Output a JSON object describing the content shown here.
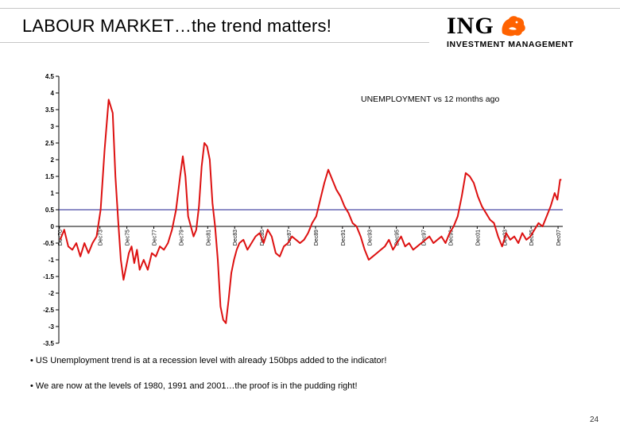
{
  "header": {
    "title": "LABOUR MARKET…the trend matters!",
    "logo_word": "ING",
    "logo_subtitle": "INVESTMENT MANAGEMENT",
    "logo_icon": "lion-icon",
    "brand_color": "#1a2a6c",
    "accent_color": "#ff6200"
  },
  "chart_data": {
    "type": "line",
    "title": "UNEMPLOYMENT vs 12 months ago",
    "xlabel": "",
    "ylabel": "",
    "ylim": [
      -3.5,
      4.5
    ],
    "yticks": [
      4.5,
      4,
      3.5,
      3,
      2.5,
      2,
      1.5,
      1,
      0.5,
      0,
      -0.5,
      -1,
      -1.5,
      -2,
      -2.5,
      -3,
      -3.5
    ],
    "ytick_labels": [
      "4.5",
      "4",
      "3.5",
      "3",
      "2.5",
      "2",
      "1.5",
      "1",
      "0.5",
      "0",
      "-0.5",
      "-1",
      "-1.5",
      "-2",
      "-2.5",
      "-3",
      "-3.5"
    ],
    "xlim": [
      1970.9,
      2008.3
    ],
    "xticks": [
      "Dec70",
      "Dec73",
      "Dec75",
      "Dec77",
      "Dec79",
      "Dec81",
      "Dec83",
      "Dec85",
      "Dec87",
      "Dec89",
      "Dec91",
      "Dec93",
      "Dec95",
      "Dec97",
      "Dec99",
      "Dec01",
      "Dec03",
      "Dec05",
      "Dec07"
    ],
    "xtick_years": [
      1970.95,
      1973.95,
      1975.95,
      1977.95,
      1979.95,
      1981.95,
      1983.95,
      1985.95,
      1987.95,
      1989.95,
      1991.95,
      1993.95,
      1995.95,
      1997.95,
      1999.95,
      2001.95,
      2003.95,
      2005.95,
      2007.95
    ],
    "reference_line": 0.5,
    "grid": false,
    "legend": "none",
    "series": [
      {
        "color": "#dd1111",
        "x": [
          1971.0,
          1971.3,
          1971.6,
          1971.9,
          1972.2,
          1972.5,
          1972.8,
          1973.1,
          1973.4,
          1973.7,
          1974.0,
          1974.3,
          1974.6,
          1974.9,
          1975.1,
          1975.3,
          1975.5,
          1975.7,
          1975.9,
          1976.1,
          1976.3,
          1976.5,
          1976.7,
          1976.9,
          1977.2,
          1977.5,
          1977.8,
          1978.1,
          1978.4,
          1978.7,
          1979.0,
          1979.3,
          1979.6,
          1979.9,
          1980.1,
          1980.3,
          1980.5,
          1980.7,
          1980.9,
          1981.1,
          1981.3,
          1981.5,
          1981.7,
          1981.9,
          1982.1,
          1982.3,
          1982.5,
          1982.7,
          1982.9,
          1983.1,
          1983.3,
          1983.5,
          1983.7,
          1983.9,
          1984.1,
          1984.3,
          1984.6,
          1984.9,
          1985.2,
          1985.5,
          1985.8,
          1986.1,
          1986.4,
          1986.7,
          1987.0,
          1987.3,
          1987.6,
          1987.9,
          1988.2,
          1988.5,
          1988.8,
          1989.1,
          1989.4,
          1989.7,
          1990.0,
          1990.3,
          1990.6,
          1990.9,
          1991.2,
          1991.5,
          1991.8,
          1992.1,
          1992.4,
          1992.7,
          1993.0,
          1993.3,
          1993.6,
          1993.9,
          1994.2,
          1994.5,
          1994.8,
          1995.1,
          1995.4,
          1995.7,
          1996.0,
          1996.3,
          1996.6,
          1996.9,
          1997.2,
          1997.5,
          1997.8,
          1998.1,
          1998.4,
          1998.7,
          1999.0,
          1999.3,
          1999.6,
          1999.9,
          2000.2,
          2000.5,
          2000.8,
          2001.1,
          2001.4,
          2001.7,
          2002.0,
          2002.3,
          2002.6,
          2002.9,
          2003.2,
          2003.5,
          2003.8,
          2004.1,
          2004.4,
          2004.7,
          2005.0,
          2005.3,
          2005.6,
          2005.9,
          2006.2,
          2006.5,
          2006.8,
          2007.1,
          2007.4,
          2007.7,
          2007.9,
          2008.1,
          2008.2
        ],
        "y": [
          -0.4,
          -0.1,
          -0.6,
          -0.7,
          -0.5,
          -0.9,
          -0.5,
          -0.8,
          -0.5,
          -0.3,
          0.5,
          2.3,
          3.8,
          3.4,
          1.5,
          0.2,
          -1.0,
          -1.6,
          -1.2,
          -0.8,
          -0.6,
          -1.1,
          -0.7,
          -1.3,
          -1.0,
          -1.3,
          -0.8,
          -0.9,
          -0.6,
          -0.7,
          -0.5,
          -0.1,
          0.5,
          1.5,
          2.1,
          1.5,
          0.3,
          0.0,
          -0.3,
          -0.1,
          0.6,
          1.8,
          2.5,
          2.4,
          2.0,
          0.7,
          0.0,
          -1.0,
          -2.4,
          -2.8,
          -2.9,
          -2.2,
          -1.4,
          -1.0,
          -0.7,
          -0.5,
          -0.4,
          -0.7,
          -0.5,
          -0.3,
          -0.2,
          -0.5,
          -0.1,
          -0.3,
          -0.8,
          -0.9,
          -0.6,
          -0.5,
          -0.3,
          -0.4,
          -0.5,
          -0.4,
          -0.2,
          0.1,
          0.3,
          0.8,
          1.3,
          1.7,
          1.4,
          1.1,
          0.9,
          0.6,
          0.4,
          0.1,
          0.0,
          -0.3,
          -0.7,
          -1.0,
          -0.9,
          -0.8,
          -0.7,
          -0.6,
          -0.4,
          -0.7,
          -0.5,
          -0.3,
          -0.6,
          -0.5,
          -0.7,
          -0.6,
          -0.5,
          -0.4,
          -0.3,
          -0.5,
          -0.4,
          -0.3,
          -0.5,
          -0.2,
          0.0,
          0.3,
          0.9,
          1.6,
          1.5,
          1.3,
          0.9,
          0.6,
          0.4,
          0.2,
          0.1,
          -0.3,
          -0.6,
          -0.2,
          -0.4,
          -0.3,
          -0.5,
          -0.2,
          -0.4,
          -0.3,
          -0.1,
          0.1,
          0.0,
          0.3,
          0.6,
          1.0,
          0.8,
          1.4,
          1.4
        ]
      }
    ]
  },
  "bullets": [
    "• US Unemployment trend is at a recession level with already 150bps added to the indicator!",
    "• We are now at the levels of 1980, 1991 and 2001…the proof is in the pudding right!"
  ],
  "page_number": "24"
}
